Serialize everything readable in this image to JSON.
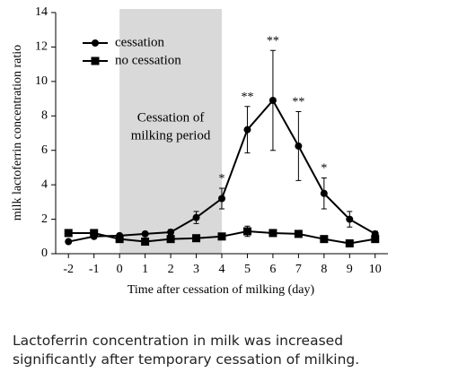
{
  "chart_data": {
    "type": "line",
    "xlabel": "Time after cessation of milking (day)",
    "ylabel": "milk lactoferrin concentration ratio",
    "x": [
      -2,
      -1,
      0,
      1,
      2,
      3,
      4,
      5,
      6,
      7,
      8,
      9,
      10
    ],
    "series": [
      {
        "name": "cessation",
        "color": "#000000",
        "marker": "circle",
        "values": [
          0.7,
          1.0,
          1.05,
          1.15,
          1.25,
          2.1,
          3.2,
          7.2,
          8.9,
          6.25,
          3.5,
          2.0,
          1.15
        ],
        "errors": [
          0.1,
          0.1,
          0.1,
          0.1,
          0.15,
          0.35,
          0.6,
          1.35,
          2.9,
          2.0,
          0.9,
          0.45,
          0.15
        ]
      },
      {
        "name": "no cessation",
        "color": "#000000",
        "marker": "square",
        "values": [
          1.2,
          1.2,
          0.85,
          0.7,
          0.85,
          0.9,
          1.0,
          1.3,
          1.2,
          1.15,
          0.85,
          0.6,
          0.85
        ],
        "errors": [
          0.1,
          0.1,
          0.1,
          0.1,
          0.1,
          0.1,
          0.1,
          0.3,
          0.15,
          0.1,
          0.1,
          0.1,
          0.1
        ]
      }
    ],
    "annotations": [
      {
        "x": 4,
        "text": "*"
      },
      {
        "x": 5,
        "text": "**"
      },
      {
        "x": 6,
        "text": "**"
      },
      {
        "x": 7,
        "text": "**"
      },
      {
        "x": 8,
        "text": "*"
      }
    ],
    "shade": [
      0,
      4
    ],
    "shade_label": [
      "Cessation of",
      "milking period"
    ],
    "xlim": [
      -2.5,
      10.5
    ],
    "xticks": [
      -2,
      -1,
      0,
      1,
      2,
      3,
      4,
      5,
      6,
      7,
      8,
      9,
      10
    ],
    "ylim": [
      0,
      14
    ],
    "yticks": [
      0,
      2,
      4,
      6,
      8,
      10,
      12,
      14
    ]
  },
  "caption": [
    "Lactoferrin concentration in milk was increased",
    "significantly after temporary cessation of milking."
  ]
}
